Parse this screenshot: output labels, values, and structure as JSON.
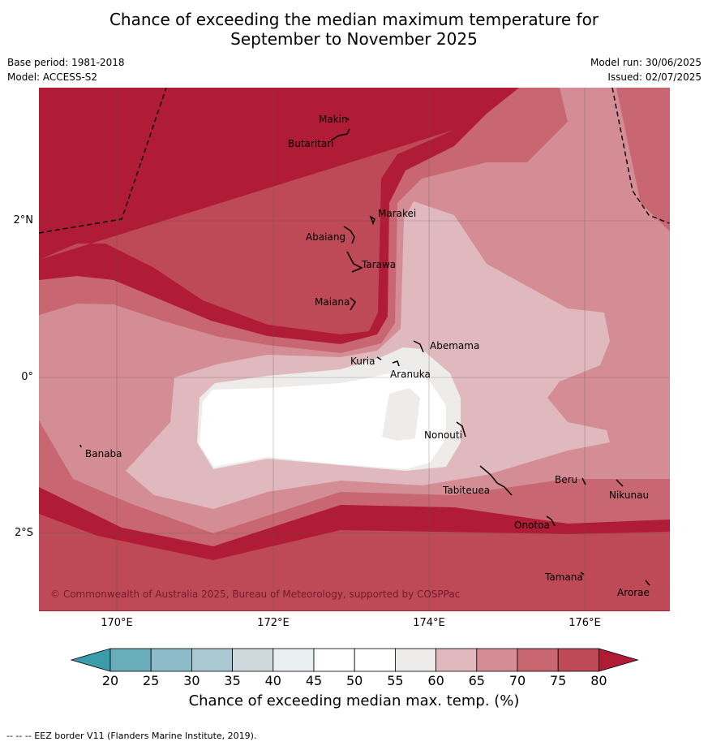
{
  "title_line1": "Chance of exceeding the median maximum temperature for",
  "title_line2": "September to November 2025",
  "base_period": "Base period: 1981-2018",
  "model": "Model: ACCESS-S2",
  "model_run": "Model run: 30/06/2025",
  "issued": "Issued: 02/07/2025",
  "copyright": "© Commonwealth of Australia 2025, Bureau of Meteorology, supported by COSPPac",
  "lat_labels": [
    "2°N",
    "0°",
    "2°S"
  ],
  "lon_labels": [
    "170°E",
    "172°E",
    "174°E",
    "176°E"
  ],
  "places": [
    "Makin",
    "Butaritari",
    "Marakei",
    "Abaiang",
    "Tarawa",
    "Maiana",
    "Abemama",
    "Kuria",
    "Aranuka",
    "Nonouti",
    "Banaba",
    "Tabiteuea",
    "Beru",
    "Nikunau",
    "Onotoa",
    "Tamana",
    "Arorae"
  ],
  "colorbar": {
    "title": "Chance of exceeding median max. temp. (%)",
    "ticks": [
      "20",
      "25",
      "30",
      "35",
      "40",
      "45",
      "50",
      "55",
      "60",
      "65",
      "70",
      "75",
      "80"
    ],
    "colors": [
      "#3b9cab",
      "#6aaebc",
      "#8bbcc7",
      "#a9c8cf",
      "#cfd9dd",
      "#e9eef0",
      "#ffffff",
      "#ffffff",
      "#eeeceb",
      "#e0b9bf",
      "#d48c95",
      "#c86671",
      "#be4a57",
      "#b01c36"
    ]
  },
  "footer": "--  --  -- EEZ border V11 (Flanders Marine Institute, 2019)."
}
